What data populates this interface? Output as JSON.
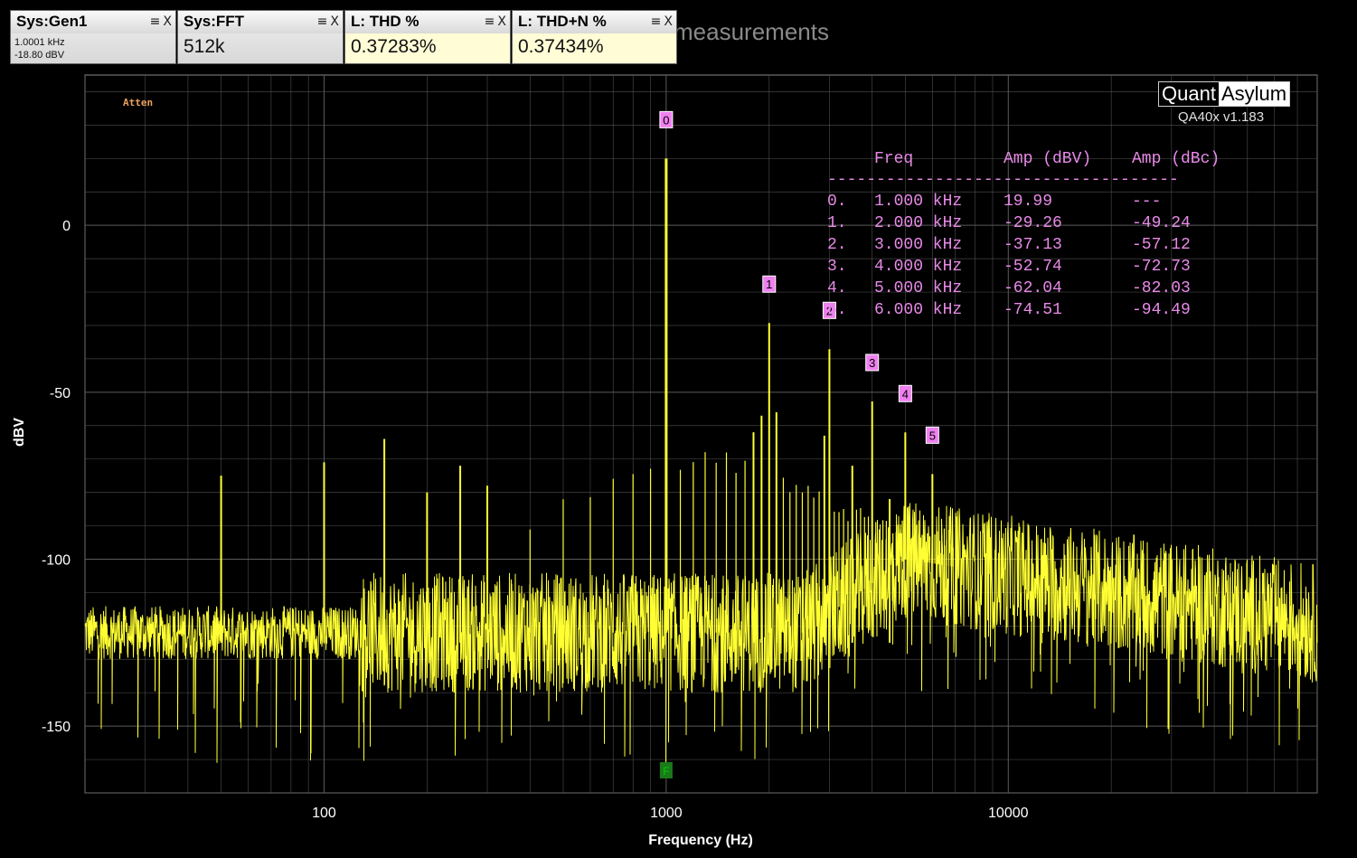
{
  "widgets": [
    {
      "title": "Sys:Gen1",
      "line1": "1.0001 kHz",
      "line2": "-18.80 dBV"
    },
    {
      "title": "Sys:FFT",
      "value": "512k"
    },
    {
      "title": "L: THD %",
      "value": "0.37283%"
    },
    {
      "title": "L: THD+N %",
      "value": "0.37434%"
    }
  ],
  "widget_icons": {
    "menu": "≡",
    "close": "X"
  },
  "background_text": "measurements",
  "logo": {
    "part1": "Quant",
    "part2": "Asylum"
  },
  "version": "QA40x v1.183",
  "atten_label": "Atten",
  "colors": {
    "trace": "#ffff33",
    "grid": "#5a5a5a",
    "marker": "#f080f0",
    "text": "#ffffff",
    "table": "#e88ae8",
    "atten": "#e8a060",
    "f_marker": "#1a7a1a"
  },
  "chart_data": {
    "type": "line",
    "xlabel": "Frequency (Hz)",
    "ylabel": "dBV",
    "x_scale": "log",
    "xlim": [
      20,
      80000
    ],
    "ylim": [
      -170,
      45
    ],
    "x_ticks": [
      {
        "value": 100,
        "label": "100"
      },
      {
        "value": 1000,
        "label": "1000"
      },
      {
        "value": 10000,
        "label": "10000"
      }
    ],
    "y_ticks": [
      {
        "value": 0,
        "label": "0"
      },
      {
        "value": -50,
        "label": "-50"
      },
      {
        "value": -100,
        "label": "-100"
      },
      {
        "value": -150,
        "label": "-150"
      }
    ],
    "grid": true,
    "harmonic_markers": [
      {
        "label": "0",
        "freq": 1000,
        "dbv": 19.99
      },
      {
        "label": "1",
        "freq": 2000,
        "dbv": -29.26
      },
      {
        "label": "2",
        "freq": 3000,
        "dbv": -37.13
      },
      {
        "label": "3",
        "freq": 4000,
        "dbv": -52.74
      },
      {
        "label": "4",
        "freq": 5000,
        "dbv": -62.04
      },
      {
        "label": "5",
        "freq": 6000,
        "dbv": -74.51
      }
    ],
    "f_marker": {
      "label": "F",
      "freq": 1000
    },
    "harmonic_table": {
      "headers": [
        "Freq",
        "Amp (dBV)",
        "Amp (dBc)"
      ],
      "separator": "------------------------------------",
      "rows": [
        {
          "idx": "0.",
          "freq": "1.000 kHz",
          "dbv": "19.99",
          "dbc": "---"
        },
        {
          "idx": "1.",
          "freq": "2.000 kHz",
          "dbv": "-29.26",
          "dbc": "-49.24"
        },
        {
          "idx": "2.",
          "freq": "3.000 kHz",
          "dbv": "-37.13",
          "dbc": "-57.12"
        },
        {
          "idx": "3.",
          "freq": "4.000 kHz",
          "dbv": "-52.74",
          "dbc": "-72.73"
        },
        {
          "idx": "4.",
          "freq": "5.000 kHz",
          "dbv": "-62.04",
          "dbc": "-82.03"
        },
        {
          "idx": "5.",
          "freq": "6.000 kHz",
          "dbv": "-74.51",
          "dbc": "-94.49"
        }
      ]
    },
    "spurs": [
      {
        "freq": 50,
        "dbv": -75
      },
      {
        "freq": 100,
        "dbv": -71
      },
      {
        "freq": 150,
        "dbv": -64
      },
      {
        "freq": 200,
        "dbv": -80
      },
      {
        "freq": 250,
        "dbv": -72
      },
      {
        "freq": 300,
        "dbv": -78
      },
      {
        "freq": 1900,
        "dbv": -57
      },
      {
        "freq": 2100,
        "dbv": -56
      },
      {
        "freq": 1800,
        "dbv": -62
      },
      {
        "freq": 2900,
        "dbv": -63
      },
      {
        "freq": 4500,
        "dbv": -82
      },
      {
        "freq": 3500,
        "dbv": -72
      }
    ]
  }
}
